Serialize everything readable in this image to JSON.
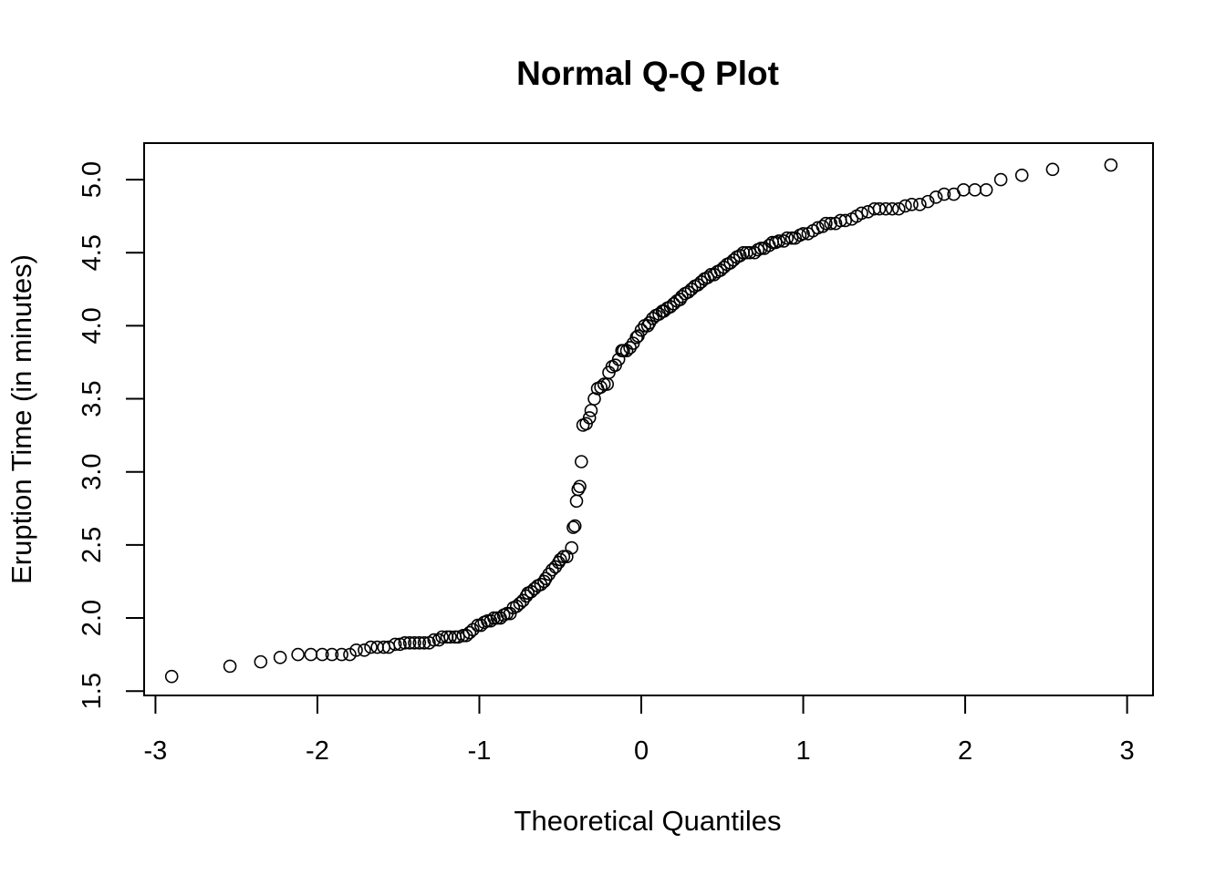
{
  "chart_data": {
    "type": "scatter",
    "title": "Normal Q-Q Plot",
    "xlabel": "Theoretical Quantiles",
    "ylabel": "Eruption Time (in minutes)",
    "xlim": [
      -3.07,
      3.16
    ],
    "ylim": [
      1.47,
      5.25
    ],
    "x_ticks": [
      -3,
      -2,
      -1,
      0,
      1,
      2,
      3
    ],
    "x_tick_labels": [
      "-3",
      "-2",
      "-1",
      "0",
      "1",
      "2",
      "3"
    ],
    "y_ticks": [
      1.5,
      2.0,
      2.5,
      3.0,
      3.5,
      4.0,
      4.5,
      5.0
    ],
    "y_tick_labels": [
      "1.5",
      "2.0",
      "2.5",
      "3.0",
      "3.5",
      "4.0",
      "4.5",
      "5.0"
    ],
    "marker": "open-circle",
    "grid": false,
    "legend": "none",
    "point_color": "#000000",
    "points": [
      [
        -2.9,
        1.6
      ],
      [
        -2.54,
        1.67
      ],
      [
        -2.35,
        1.7
      ],
      [
        -2.23,
        1.73
      ],
      [
        -2.12,
        1.75
      ],
      [
        -2.04,
        1.75
      ],
      [
        -1.97,
        1.75
      ],
      [
        -1.91,
        1.75
      ],
      [
        -1.85,
        1.75
      ],
      [
        -1.8,
        1.75
      ],
      [
        -1.76,
        1.78
      ],
      [
        -1.71,
        1.78
      ],
      [
        -1.67,
        1.8
      ],
      [
        -1.63,
        1.8
      ],
      [
        -1.59,
        1.8
      ],
      [
        -1.56,
        1.8
      ],
      [
        -1.52,
        1.82
      ],
      [
        -1.49,
        1.82
      ],
      [
        -1.46,
        1.83
      ],
      [
        -1.43,
        1.83
      ],
      [
        -1.4,
        1.83
      ],
      [
        -1.37,
        1.83
      ],
      [
        -1.34,
        1.83
      ],
      [
        -1.31,
        1.83
      ],
      [
        -1.28,
        1.85
      ],
      [
        -1.25,
        1.85
      ],
      [
        -1.23,
        1.87
      ],
      [
        -1.2,
        1.87
      ],
      [
        -1.18,
        1.87
      ],
      [
        -1.15,
        1.87
      ],
      [
        -1.13,
        1.87
      ],
      [
        -1.1,
        1.88
      ],
      [
        -1.08,
        1.88
      ],
      [
        -1.06,
        1.9
      ],
      [
        -1.04,
        1.92
      ],
      [
        -1.01,
        1.95
      ],
      [
        -0.99,
        1.95
      ],
      [
        -0.97,
        1.97
      ],
      [
        -0.95,
        1.98
      ],
      [
        -0.93,
        1.98
      ],
      [
        -0.91,
        2.0
      ],
      [
        -0.89,
        2.0
      ],
      [
        -0.87,
        2.0
      ],
      [
        -0.85,
        2.02
      ],
      [
        -0.83,
        2.03
      ],
      [
        -0.81,
        2.03
      ],
      [
        -0.79,
        2.07
      ],
      [
        -0.77,
        2.08
      ],
      [
        -0.75,
        2.1
      ],
      [
        -0.73,
        2.12
      ],
      [
        -0.71,
        2.15
      ],
      [
        -0.7,
        2.17
      ],
      [
        -0.68,
        2.18
      ],
      [
        -0.66,
        2.2
      ],
      [
        -0.64,
        2.22
      ],
      [
        -0.62,
        2.23
      ],
      [
        -0.6,
        2.25
      ],
      [
        -0.59,
        2.27
      ],
      [
        -0.57,
        2.3
      ],
      [
        -0.55,
        2.33
      ],
      [
        -0.53,
        2.35
      ],
      [
        -0.51,
        2.38
      ],
      [
        -0.5,
        2.4
      ],
      [
        -0.48,
        2.42
      ],
      [
        -0.46,
        2.42
      ],
      [
        -0.43,
        2.48
      ],
      [
        -0.42,
        2.62
      ],
      [
        -0.41,
        2.63
      ],
      [
        -0.4,
        2.8
      ],
      [
        -0.39,
        2.88
      ],
      [
        -0.38,
        2.9
      ],
      [
        -0.37,
        3.07
      ],
      [
        -0.36,
        3.32
      ],
      [
        -0.34,
        3.33
      ],
      [
        -0.32,
        3.37
      ],
      [
        -0.31,
        3.42
      ],
      [
        -0.29,
        3.5
      ],
      [
        -0.27,
        3.57
      ],
      [
        -0.25,
        3.58
      ],
      [
        -0.23,
        3.6
      ],
      [
        -0.21,
        3.6
      ],
      [
        -0.2,
        3.68
      ],
      [
        -0.18,
        3.72
      ],
      [
        -0.16,
        3.73
      ],
      [
        -0.14,
        3.77
      ],
      [
        -0.12,
        3.83
      ],
      [
        -0.11,
        3.83
      ],
      [
        -0.09,
        3.83
      ],
      [
        -0.07,
        3.85
      ],
      [
        -0.05,
        3.88
      ],
      [
        -0.03,
        3.92
      ],
      [
        -0.02,
        3.93
      ],
      [
        0.0,
        3.97
      ],
      [
        0.02,
        4.0
      ],
      [
        0.04,
        4.0
      ],
      [
        0.05,
        4.02
      ],
      [
        0.07,
        4.05
      ],
      [
        0.09,
        4.07
      ],
      [
        0.11,
        4.08
      ],
      [
        0.13,
        4.1
      ],
      [
        0.14,
        4.1
      ],
      [
        0.16,
        4.12
      ],
      [
        0.18,
        4.13
      ],
      [
        0.2,
        4.15
      ],
      [
        0.22,
        4.17
      ],
      [
        0.24,
        4.18
      ],
      [
        0.25,
        4.2
      ],
      [
        0.27,
        4.22
      ],
      [
        0.29,
        4.23
      ],
      [
        0.31,
        4.25
      ],
      [
        0.33,
        4.27
      ],
      [
        0.35,
        4.28
      ],
      [
        0.37,
        4.3
      ],
      [
        0.39,
        4.32
      ],
      [
        0.41,
        4.33
      ],
      [
        0.43,
        4.35
      ],
      [
        0.45,
        4.35
      ],
      [
        0.47,
        4.37
      ],
      [
        0.49,
        4.38
      ],
      [
        0.51,
        4.4
      ],
      [
        0.53,
        4.42
      ],
      [
        0.55,
        4.43
      ],
      [
        0.57,
        4.45
      ],
      [
        0.59,
        4.47
      ],
      [
        0.61,
        4.48
      ],
      [
        0.63,
        4.5
      ],
      [
        0.65,
        4.5
      ],
      [
        0.67,
        4.5
      ],
      [
        0.7,
        4.5
      ],
      [
        0.72,
        4.52
      ],
      [
        0.74,
        4.53
      ],
      [
        0.76,
        4.53
      ],
      [
        0.79,
        4.55
      ],
      [
        0.81,
        4.57
      ],
      [
        0.83,
        4.57
      ],
      [
        0.85,
        4.58
      ],
      [
        0.88,
        4.58
      ],
      [
        0.9,
        4.6
      ],
      [
        0.93,
        4.6
      ],
      [
        0.95,
        4.6
      ],
      [
        0.98,
        4.62
      ],
      [
        1.0,
        4.63
      ],
      [
        1.03,
        4.63
      ],
      [
        1.06,
        4.65
      ],
      [
        1.09,
        4.67
      ],
      [
        1.12,
        4.68
      ],
      [
        1.14,
        4.7
      ],
      [
        1.17,
        4.7
      ],
      [
        1.2,
        4.7
      ],
      [
        1.23,
        4.72
      ],
      [
        1.26,
        4.72
      ],
      [
        1.3,
        4.73
      ],
      [
        1.33,
        4.75
      ],
      [
        1.36,
        4.77
      ],
      [
        1.4,
        4.78
      ],
      [
        1.44,
        4.8
      ],
      [
        1.47,
        4.8
      ],
      [
        1.51,
        4.8
      ],
      [
        1.55,
        4.8
      ],
      [
        1.59,
        4.8
      ],
      [
        1.63,
        4.82
      ],
      [
        1.67,
        4.83
      ],
      [
        1.72,
        4.83
      ],
      [
        1.77,
        4.85
      ],
      [
        1.82,
        4.88
      ],
      [
        1.87,
        4.9
      ],
      [
        1.93,
        4.9
      ],
      [
        1.99,
        4.93
      ],
      [
        2.06,
        4.93
      ],
      [
        2.13,
        4.93
      ],
      [
        2.22,
        5.0
      ],
      [
        2.35,
        5.03
      ],
      [
        2.54,
        5.07
      ],
      [
        2.9,
        5.1
      ]
    ]
  }
}
